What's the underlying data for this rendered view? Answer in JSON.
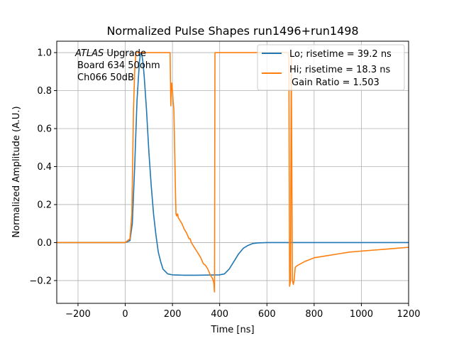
{
  "chart_data": {
    "type": "line",
    "title": "Normalized Pulse Shapes run1496+run1498",
    "xlabel": "Time [ns]",
    "ylabel": "Normalized Amplitude (A.U.)",
    "xlim": [
      -290,
      1200
    ],
    "ylim": [
      -0.32,
      1.06
    ],
    "xticks": [
      -200,
      0,
      200,
      400,
      600,
      800,
      1000,
      1200
    ],
    "xtick_labels": [
      "−200",
      "0",
      "200",
      "400",
      "600",
      "800",
      "1000",
      "1200"
    ],
    "yticks": [
      -0.2,
      0.0,
      0.2,
      0.4,
      0.6,
      0.8,
      1.0
    ],
    "ytick_labels": [
      "−0.2",
      "0.0",
      "0.2",
      "0.4",
      "0.6",
      "0.8",
      "1.0"
    ],
    "grid": true,
    "legend_position": "top-right",
    "annotation": {
      "line1_italic": "ATLAS",
      "line1_rest": " Upgrade",
      "line2": "Board 634 50ohm",
      "line3": "Ch066 50dB"
    },
    "legend_extra": "Gain Ratio = 1.503",
    "series": [
      {
        "name": "Lo; risetime = 39.2 ns",
        "color": "#1f77b4",
        "x": [
          -290,
          0,
          20,
          30,
          40,
          50,
          60,
          65,
          70,
          75,
          80,
          90,
          100,
          110,
          120,
          130,
          140,
          150,
          160,
          180,
          200,
          250,
          300,
          350,
          400,
          420,
          440,
          460,
          480,
          500,
          520,
          540,
          560,
          600,
          700,
          800,
          900,
          1000,
          1100,
          1200
        ],
        "y": [
          0.0,
          0.0,
          0.01,
          0.1,
          0.4,
          0.75,
          0.95,
          1.0,
          0.99,
          0.95,
          0.88,
          0.7,
          0.48,
          0.3,
          0.15,
          0.04,
          -0.05,
          -0.1,
          -0.14,
          -0.165,
          -0.17,
          -0.172,
          -0.172,
          -0.171,
          -0.17,
          -0.165,
          -0.14,
          -0.1,
          -0.06,
          -0.03,
          -0.015,
          -0.005,
          -0.002,
          0.0,
          0.0,
          0.0,
          0.0,
          0.0,
          0.0,
          0.0
        ]
      },
      {
        "name": "Hi; risetime = 18.3 ns",
        "color": "#ff7f0e",
        "x": [
          -290,
          0,
          20,
          28,
          35,
          40,
          45,
          50,
          190,
          193,
          195,
          197,
          200,
          203,
          206,
          210,
          213,
          215,
          218,
          220,
          222,
          225,
          230,
          240,
          250,
          260,
          270,
          275,
          280,
          290,
          300,
          310,
          320,
          330,
          340,
          350,
          360,
          370,
          375,
          378,
          380,
          382,
          385,
          500,
          600,
          690,
          693,
          696,
          700,
          703,
          708,
          712,
          715,
          720,
          725,
          730,
          760,
          800,
          850,
          900,
          950,
          1000,
          1050,
          1100,
          1150,
          1200
        ],
        "y": [
          0.0,
          0.0,
          0.02,
          0.15,
          0.7,
          0.9,
          1.0,
          1.0,
          1.0,
          0.72,
          0.82,
          0.84,
          0.8,
          0.74,
          0.7,
          0.45,
          0.25,
          0.15,
          0.14,
          0.15,
          0.15,
          0.13,
          0.12,
          0.1,
          0.07,
          0.05,
          0.02,
          0.02,
          0.0,
          -0.02,
          -0.04,
          -0.06,
          -0.08,
          -0.11,
          -0.12,
          -0.14,
          -0.17,
          -0.19,
          -0.21,
          -0.26,
          1.0,
          1.0,
          1.0,
          1.0,
          1.0,
          1.0,
          0.96,
          -0.23,
          -0.2,
          1.0,
          -0.2,
          -0.22,
          -0.2,
          -0.13,
          -0.125,
          -0.12,
          -0.1,
          -0.08,
          -0.07,
          -0.06,
          -0.05,
          -0.045,
          -0.04,
          -0.035,
          -0.03,
          -0.025
        ]
      }
    ]
  }
}
